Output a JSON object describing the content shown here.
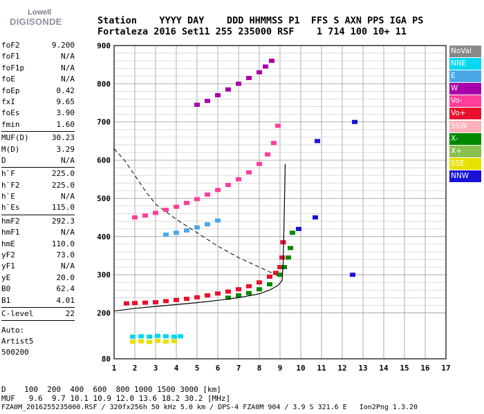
{
  "logo": {
    "line1": "Lowell",
    "line2": "DIGISONDE"
  },
  "header": {
    "row1": "Station    YYYY DAY    DDD HHMMSS P1  FFS S AXN PPS IGA PS",
    "row2": "Fortaleza 2016 Set11 255 235000 RSF    1 714 100 10+ 11"
  },
  "params": {
    "group1": [
      {
        "name": "foF2",
        "value": "9.200"
      },
      {
        "name": "foF1",
        "value": "N/A"
      },
      {
        "name": "foF1p",
        "value": "N/A"
      },
      {
        "name": "foE",
        "value": "N/A"
      },
      {
        "name": "foEp",
        "value": "0.42"
      },
      {
        "name": "fxI",
        "value": "9.65"
      },
      {
        "name": "foEs",
        "value": "3.90"
      },
      {
        "name": "fmin",
        "value": "1.60"
      }
    ],
    "group2": [
      {
        "name": "MUF(D)",
        "value": "30.23"
      },
      {
        "name": "M(D)",
        "value": "3.29"
      },
      {
        "name": "D",
        "value": "N/A"
      }
    ],
    "group3": [
      {
        "name": "h`F",
        "value": "225.0"
      },
      {
        "name": "h`F2",
        "value": "225.0"
      },
      {
        "name": "h`E",
        "value": "N/A"
      },
      {
        "name": "h`Es",
        "value": "115.0"
      }
    ],
    "group4": [
      {
        "name": "hmF2",
        "value": "292.3"
      },
      {
        "name": "hmF1",
        "value": "N/A"
      },
      {
        "name": "hmE",
        "value": "110.0"
      },
      {
        "name": "yF2",
        "value": "73.0"
      },
      {
        "name": "yF1",
        "value": "N/A"
      },
      {
        "name": "yE",
        "value": "20.0"
      },
      {
        "name": "B0",
        "value": "62.4"
      },
      {
        "name": "B1",
        "value": "4.01"
      }
    ],
    "group5": [
      {
        "name": "C-level",
        "value": "22"
      }
    ],
    "auto_label": "Auto:",
    "artist": "Artist5",
    "version": "500200"
  },
  "legend": [
    {
      "label": "NoVal",
      "color": "#888888"
    },
    {
      "label": "NNE",
      "color": "#00d8f0"
    },
    {
      "label": "E",
      "color": "#4aa8e8"
    },
    {
      "label": "W",
      "color": "#a800a8"
    },
    {
      "label": "Vo-",
      "color": "#ff3e9c"
    },
    {
      "label": "Vo+",
      "color": "#e8102c"
    },
    {
      "label": "SSW",
      "color": "#ffb0b8"
    },
    {
      "label": "X-",
      "color": "#008800"
    },
    {
      "label": "X+",
      "color": "#88c050"
    },
    {
      "label": "SSE",
      "color": "#e8e000"
    },
    {
      "label": "NNW",
      "color": "#1a10d8"
    }
  ],
  "bottom": {
    "row1": "D    100  200  400  600  800 1000 1500 3000 [km]",
    "row2": "MUF   9.6  9.7 10.1 10.9 12.0 13.6 18.2 30.2 [MHz]",
    "footer": "FZA0M_2016255235000.RSF / 320fx256h 50 kHz 5.0 km / DPS-4 FZA0M 904 / 3.9 S 321.6 E   Ion2Png 1.3.20"
  },
  "chart_data": {
    "type": "scatter",
    "x_ticks": [
      "1",
      "2",
      "3",
      "4",
      "5",
      "6",
      "7",
      "8",
      "9",
      "10",
      "11",
      "12",
      "13",
      "14",
      "15",
      "16",
      "17"
    ],
    "y_ticks": [
      "80",
      "200",
      "300",
      "400",
      "500",
      "600",
      "700",
      "800",
      "900"
    ],
    "xlim": [
      1,
      17
    ],
    "ylim": [
      80,
      900
    ],
    "grid": true,
    "legend_position": "right",
    "series": [
      {
        "name": "Vo+",
        "color": "#e8102c",
        "x": [
          1.6,
          2.0,
          2.5,
          3.0,
          3.5,
          4.0,
          4.5,
          5.0,
          5.5,
          6.0,
          6.5,
          7.0,
          7.5,
          8.0,
          8.5,
          8.8,
          9.0,
          9.1,
          9.15
        ],
        "y": [
          225,
          226,
          227,
          228,
          231,
          234,
          237,
          241,
          246,
          251,
          256,
          262,
          270,
          280,
          295,
          305,
          320,
          345,
          385
        ]
      },
      {
        "name": "X-",
        "color": "#008800",
        "x": [
          6.5,
          7.0,
          7.5,
          8.0,
          8.5,
          9.0,
          9.2,
          9.4,
          9.5,
          9.6
        ],
        "y": [
          240,
          246,
          252,
          262,
          275,
          300,
          320,
          345,
          370,
          410
        ]
      },
      {
        "name": "Vo-",
        "color": "#ff3e9c",
        "x": [
          2.0,
          2.5,
          3.0,
          3.5,
          4.0,
          4.5,
          5.0,
          5.5,
          6.0,
          6.5,
          7.0,
          7.5,
          8.0,
          8.4,
          8.7,
          8.9
        ],
        "y": [
          450,
          455,
          462,
          470,
          478,
          488,
          498,
          510,
          522,
          535,
          550,
          568,
          590,
          615,
          645,
          690
        ]
      },
      {
        "name": "E",
        "color": "#4aa8e8",
        "x": [
          3.5,
          4.0,
          4.5,
          5.0,
          5.5,
          6.0
        ],
        "y": [
          405,
          410,
          416,
          424,
          432,
          442
        ]
      },
      {
        "name": "SSE",
        "color": "#e8e000",
        "x": [
          1.9,
          2.3,
          2.7,
          3.1,
          3.5,
          3.9
        ],
        "y": [
          125,
          126,
          124,
          127,
          125,
          126
        ]
      },
      {
        "name": "NNE",
        "color": "#00d8f0",
        "x": [
          1.9,
          2.3,
          2.7,
          3.1,
          3.5,
          3.9,
          4.2
        ],
        "y": [
          138,
          139,
          138,
          140,
          139,
          138,
          139
        ]
      },
      {
        "name": "W",
        "color": "#a800a8",
        "x": [
          5.0,
          5.5,
          6.0,
          6.5,
          7.0,
          7.5,
          8.0,
          8.3,
          8.6
        ],
        "y": [
          745,
          755,
          770,
          785,
          800,
          815,
          830,
          845,
          860
        ]
      },
      {
        "name": "NNW",
        "color": "#1a10d8",
        "x": [
          9.9,
          10.7,
          10.8,
          12.5,
          12.6
        ],
        "y": [
          420,
          450,
          650,
          300,
          700
        ]
      }
    ],
    "profile_solid": {
      "x": [
        1,
        2,
        3,
        4,
        5,
        6,
        7,
        8,
        8.5,
        8.9,
        9.1,
        9.15,
        9.2,
        9.25
      ],
      "y": [
        205,
        212,
        217,
        222,
        227,
        233,
        240,
        250,
        260,
        272,
        285,
        330,
        450,
        590
      ]
    },
    "profile_dashed": {
      "x": [
        1,
        1.5,
        2,
        2.5,
        3,
        4,
        5,
        6,
        7,
        8,
        9
      ],
      "y": [
        630,
        600,
        560,
        520,
        485,
        445,
        410,
        375,
        345,
        320,
        295
      ]
    }
  }
}
